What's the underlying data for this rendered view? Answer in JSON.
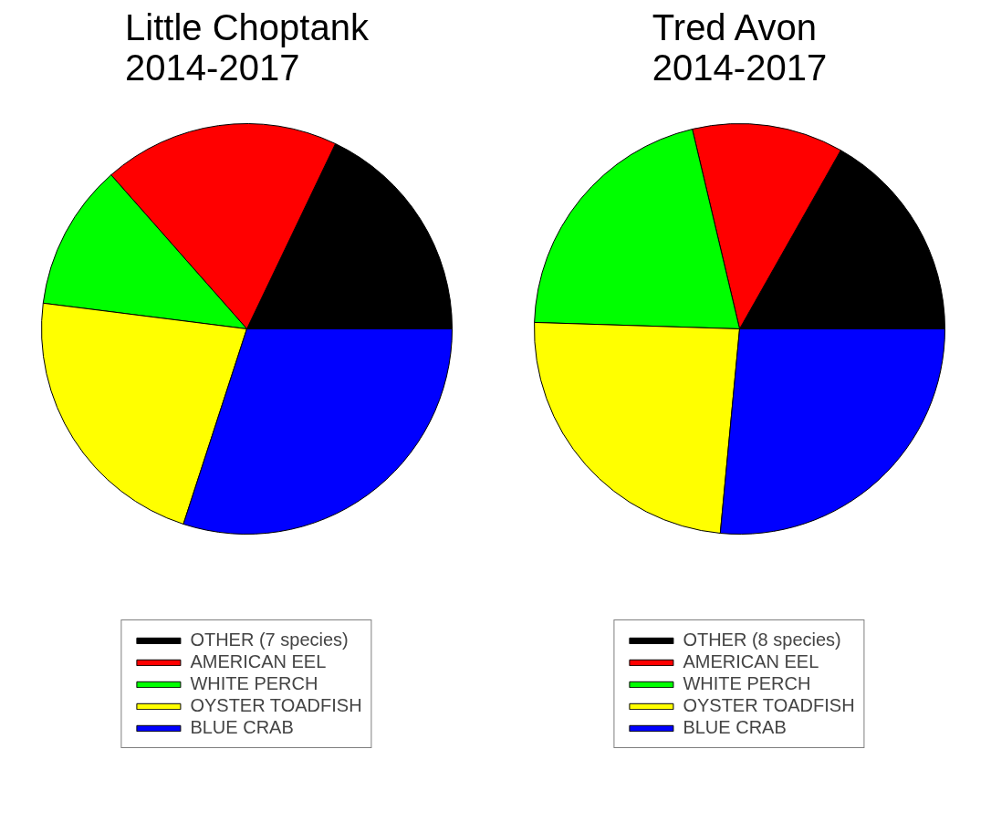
{
  "chart_data": [
    {
      "type": "pie",
      "title": "Little Choptank\n2014-2017",
      "categories": [
        "OTHER (7 species)",
        "AMERICAN EEL",
        "WHITE PERCH",
        "OYSTER TOADFISH",
        "BLUE CRAB"
      ],
      "values": [
        17.9,
        18.6,
        11.5,
        22,
        30
      ],
      "colors": [
        "#000000",
        "#ff0000",
        "#00ff00",
        "#ffff00",
        "#0000ff"
      ],
      "legend": "bottom"
    },
    {
      "type": "pie",
      "title": "Tred Avon\n2014-2017",
      "categories": [
        "OTHER (8 species)",
        "AMERICAN EEL",
        "WHITE PERCH",
        "OYSTER TOADFISH",
        "BLUE CRAB"
      ],
      "values": [
        16.8,
        11.9,
        20.8,
        24,
        26.5
      ],
      "colors": [
        "#000000",
        "#ff0000",
        "#00ff00",
        "#ffff00",
        "#0000ff"
      ],
      "legend": "bottom"
    }
  ]
}
